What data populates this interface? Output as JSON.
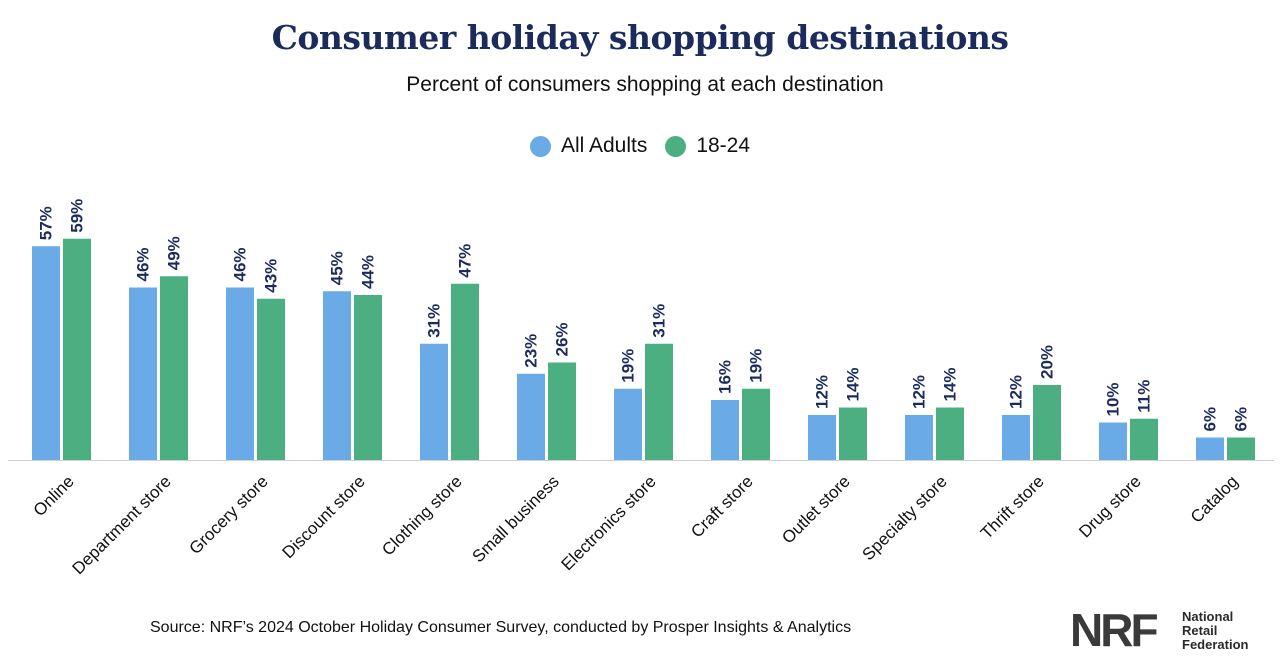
{
  "chart_data": {
    "type": "bar",
    "title": "Consumer holiday shopping destinations",
    "subtitle": "Percent of consumers shopping at each destination",
    "categories": [
      "Online",
      "Department store",
      "Grocery store",
      "Discount store",
      "Clothing store",
      "Small business",
      "Electronics store",
      "Craft store",
      "Outlet store",
      "Specialty store",
      "Thrift store",
      "Drug store",
      "Catalog"
    ],
    "series": [
      {
        "name": "All Adults",
        "color": "#6aaae6",
        "values": [
          57,
          46,
          46,
          45,
          31,
          23,
          19,
          16,
          12,
          12,
          12,
          10,
          6
        ]
      },
      {
        "name": "18-24",
        "color": "#4caf82",
        "values": [
          59,
          49,
          43,
          44,
          47,
          26,
          31,
          19,
          14,
          14,
          20,
          11,
          6
        ]
      }
    ],
    "value_suffix": "%",
    "ylim": [
      0,
      60
    ],
    "grid": false,
    "legend_position": "top-center"
  },
  "source": "Source: NRF’s 2024 October Holiday Consumer Survey, conducted by Prosper Insights & Analytics",
  "logo": {
    "mark": "NRF",
    "lines": [
      "National",
      "Retail",
      "Federation"
    ]
  },
  "colors": {
    "title": "#1b2c5c",
    "label": "#1b2c5c",
    "axis": "#cfcfcf"
  }
}
